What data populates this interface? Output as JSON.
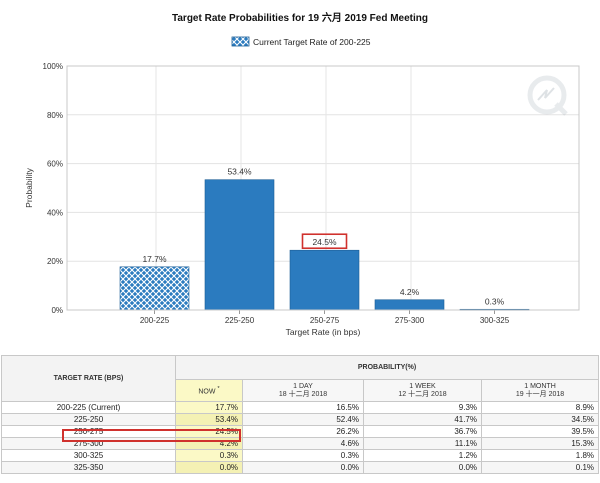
{
  "chart_data": {
    "type": "bar",
    "title": "Target Rate Probabilities for 19 六月 2019 Fed Meeting",
    "legend": {
      "label": "Current Target Rate of 200-225",
      "position": "top-center"
    },
    "xlabel": "Target Rate (in bps)",
    "ylabel": "Probability",
    "ylim": [
      0,
      100
    ],
    "yticks": [
      "0%",
      "20%",
      "40%",
      "60%",
      "80%",
      "100%"
    ],
    "categories": [
      "200-225",
      "225-250",
      "250-275",
      "275-300",
      "300-325"
    ],
    "values": [
      17.7,
      53.4,
      24.5,
      4.2,
      0.3
    ],
    "value_labels": [
      "17.7%",
      "53.4%",
      "24.5%",
      "4.2%",
      "0.3%"
    ],
    "current_category": "200-225",
    "highlighted_category": "250-275",
    "grid": "vertical",
    "colors": {
      "bar": "#2b7bbf",
      "bar_stroke": "#1d5f96",
      "highlight": "#d0312d"
    }
  },
  "table": {
    "header_rate": "TARGET RATE (BPS)",
    "header_prob": "PROBABILITY(%)",
    "columns": [
      {
        "label": "NOW",
        "mark": "*",
        "date": ""
      },
      {
        "label": "1 DAY",
        "date": "18 十二月 2018"
      },
      {
        "label": "1 WEEK",
        "date": "12 十二月 2018"
      },
      {
        "label": "1 MONTH",
        "date": "19 十一月 2018"
      }
    ],
    "rows": [
      {
        "rate": "200-225 (Current)",
        "values": [
          "17.7%",
          "16.5%",
          "9.3%",
          "8.9%"
        ]
      },
      {
        "rate": "225-250",
        "values": [
          "53.4%",
          "52.4%",
          "41.7%",
          "34.5%"
        ]
      },
      {
        "rate": "250-275",
        "values": [
          "24.5%",
          "26.2%",
          "36.7%",
          "39.5%"
        ]
      },
      {
        "rate": "275-300",
        "values": [
          "4.2%",
          "4.6%",
          "11.1%",
          "15.3%"
        ]
      },
      {
        "rate": "300-325",
        "values": [
          "0.3%",
          "0.3%",
          "1.2%",
          "1.8%"
        ]
      },
      {
        "rate": "325-350",
        "values": [
          "0.0%",
          "0.0%",
          "0.0%",
          "0.1%"
        ]
      }
    ]
  }
}
